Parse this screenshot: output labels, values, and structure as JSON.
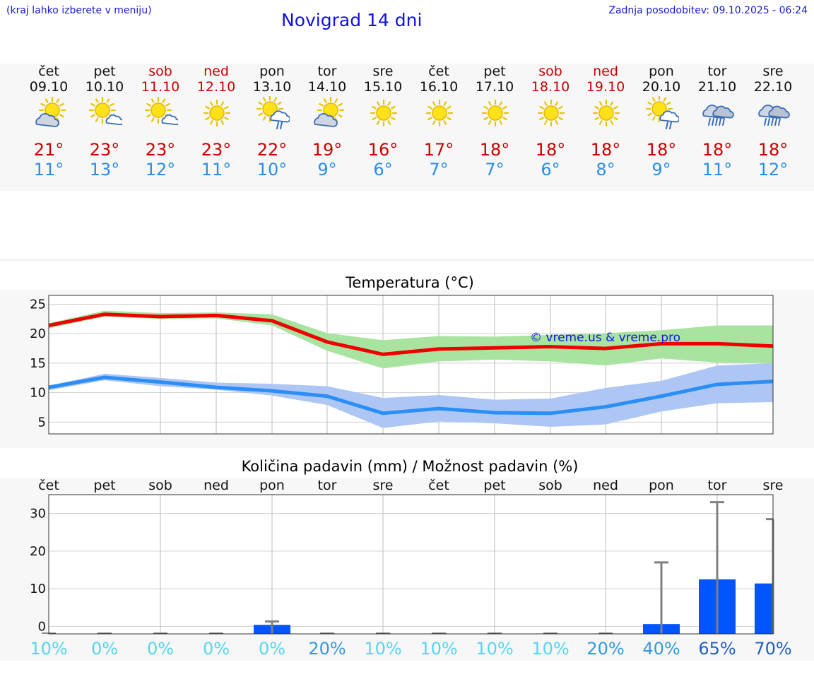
{
  "header": {
    "hint": "(kraj lahko izberete v meniju)",
    "title": "Novigrad 14 dni",
    "updated": "Zadnja posodobitev: 09.10.2025 - 06:24"
  },
  "days": [
    {
      "name": "čet",
      "date": "09.10",
      "weekend": false,
      "icon": "partly-cloudy-icon",
      "tmax": "21°",
      "tmin": "11°"
    },
    {
      "name": "pet",
      "date": "10.10",
      "weekend": false,
      "icon": "sun-small-cloud-icon",
      "tmax": "23°",
      "tmin": "13°"
    },
    {
      "name": "sob",
      "date": "11.10",
      "weekend": true,
      "icon": "sun-small-cloud-icon",
      "tmax": "23°",
      "tmin": "12°"
    },
    {
      "name": "ned",
      "date": "12.10",
      "weekend": true,
      "icon": "sun-icon",
      "tmax": "23°",
      "tmin": "11°"
    },
    {
      "name": "pon",
      "date": "13.10",
      "weekend": false,
      "icon": "sun-rain-icon",
      "tmax": "22°",
      "tmin": "10°"
    },
    {
      "name": "tor",
      "date": "14.10",
      "weekend": false,
      "icon": "partly-cloudy-icon",
      "tmax": "19°",
      "tmin": "9°"
    },
    {
      "name": "sre",
      "date": "15.10",
      "weekend": false,
      "icon": "sun-icon",
      "tmax": "16°",
      "tmin": "6°"
    },
    {
      "name": "čet",
      "date": "16.10",
      "weekend": false,
      "icon": "sun-icon",
      "tmax": "17°",
      "tmin": "7°"
    },
    {
      "name": "pet",
      "date": "17.10",
      "weekend": false,
      "icon": "sun-icon",
      "tmax": "18°",
      "tmin": "7°"
    },
    {
      "name": "sob",
      "date": "18.10",
      "weekend": true,
      "icon": "sun-icon",
      "tmax": "18°",
      "tmin": "6°"
    },
    {
      "name": "ned",
      "date": "19.10",
      "weekend": true,
      "icon": "sun-icon",
      "tmax": "18°",
      "tmin": "8°"
    },
    {
      "name": "pon",
      "date": "20.10",
      "weekend": false,
      "icon": "sun-rain-icon",
      "tmax": "18°",
      "tmin": "9°"
    },
    {
      "name": "tor",
      "date": "21.10",
      "weekend": false,
      "icon": "cloud-rain-icon",
      "tmax": "18°",
      "tmin": "11°"
    },
    {
      "name": "sre",
      "date": "22.10",
      "weekend": false,
      "icon": "cloud-rain-icon",
      "tmax": "18°",
      "tmin": "12°"
    }
  ],
  "watermark": "© vreme.us & vreme.pro",
  "colors": {
    "max_line": "#ee0000",
    "max_band": "#a8e4a0",
    "min_line": "#2a8ef5",
    "min_band": "#adc6f4",
    "rain_bar": "#0055ff",
    "error_bar": "#808080",
    "pct_light": "#55d6f0",
    "pct_mid": "#3399dd",
    "pct_dark": "#2060c0"
  },
  "chart_data": [
    {
      "type": "line",
      "title": "Temperatura (°C)",
      "x": [
        "09.10",
        "10.10",
        "11.10",
        "12.10",
        "13.10",
        "14.10",
        "15.10",
        "16.10",
        "17.10",
        "18.10",
        "19.10",
        "20.10",
        "21.10",
        "22.10"
      ],
      "ylim": [
        3,
        26.5
      ],
      "yticks": [
        5,
        10,
        15,
        20,
        25
      ],
      "grid": true,
      "series": [
        {
          "name": "max",
          "values": [
            21.4,
            23.3,
            22.9,
            23.1,
            22.2,
            18.6,
            16.5,
            17.4,
            17.6,
            17.8,
            17.5,
            18.3,
            18.3,
            17.9
          ],
          "band_low": [
            20.9,
            22.9,
            22.5,
            22.6,
            21.4,
            17.1,
            14.1,
            15.3,
            15.6,
            15.3,
            14.6,
            15.8,
            15.1,
            15.0
          ],
          "band_high": [
            21.8,
            23.9,
            23.5,
            23.6,
            23.3,
            20.1,
            18.9,
            19.6,
            19.5,
            19.8,
            20.1,
            20.6,
            21.4,
            21.4
          ]
        },
        {
          "name": "min",
          "values": [
            10.9,
            12.6,
            11.8,
            10.9,
            10.3,
            9.4,
            6.5,
            7.3,
            6.6,
            6.5,
            7.6,
            9.4,
            11.4,
            11.9
          ],
          "band_low": [
            10.4,
            12.1,
            11.1,
            10.5,
            9.5,
            7.9,
            4.0,
            5.1,
            4.8,
            4.2,
            4.6,
            6.8,
            8.2,
            8.4
          ],
          "band_high": [
            11.2,
            13.2,
            12.5,
            11.7,
            11.5,
            11.1,
            9.1,
            9.6,
            8.8,
            9.0,
            10.8,
            12.0,
            14.6,
            15.0
          ]
        }
      ]
    },
    {
      "type": "bar",
      "title": "Količina padavin (mm) / Možnost padavin (%)",
      "categories": [
        "čet",
        "pet",
        "sob",
        "ned",
        "pon",
        "tor",
        "sre",
        "čet",
        "pet",
        "sob",
        "ned",
        "pon",
        "tor",
        "sre"
      ],
      "ylim": [
        -2,
        35
      ],
      "yticks": [
        0,
        10,
        20,
        30
      ],
      "grid": true,
      "values": [
        0,
        0,
        0,
        0,
        0.4,
        0,
        0,
        0,
        0,
        0,
        0,
        0.6,
        12.5,
        11.4
      ],
      "error_max": [
        0,
        0,
        0,
        0,
        1.3,
        0,
        0,
        0,
        0,
        0,
        0,
        17,
        33,
        28.5
      ],
      "probability": [
        "10%",
        "0%",
        "0%",
        "0%",
        "0%",
        "20%",
        "10%",
        "10%",
        "10%",
        "10%",
        "20%",
        "40%",
        "65%",
        "70%"
      ],
      "probability_values": [
        10,
        0,
        0,
        0,
        0,
        20,
        10,
        10,
        10,
        10,
        20,
        40,
        65,
        70
      ]
    }
  ]
}
